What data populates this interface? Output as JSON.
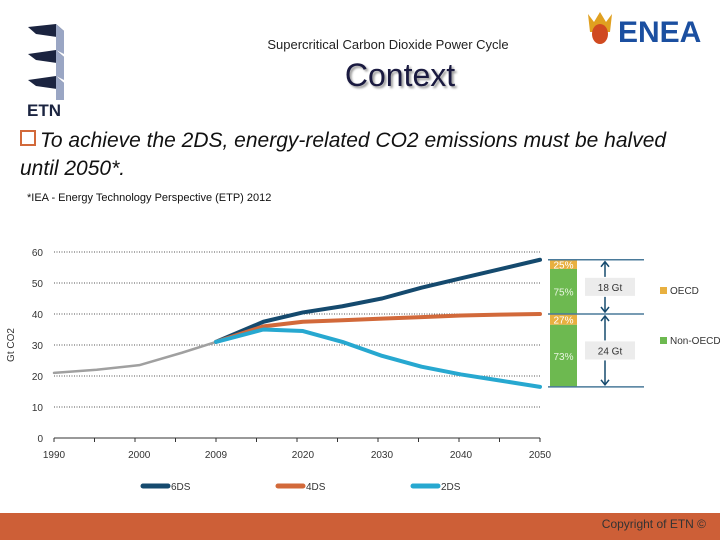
{
  "header": {
    "subtitle": "Supercritical Carbon Dioxide Power Cycle",
    "title": "Context",
    "etn_logo_text": "ETN",
    "enea_logo_text": "ENEA"
  },
  "bullet": {
    "icon": "hollow-square-bullet-icon",
    "text": "To achieve the 2DS, energy-related CO2 emissions must be halved until 2050*."
  },
  "source": "*IEA - Energy Technology  Perspective (ETP) 2012",
  "footer": {
    "copyright": "Copyright of ETN ©",
    "color": "#cd5f37"
  },
  "chart_data": {
    "type": "line",
    "ylabel": "Gt CO2",
    "ylim": [
      0,
      60
    ],
    "yticks": [
      0,
      10,
      20,
      30,
      40,
      50,
      60
    ],
    "xticks": [
      "1990",
      "2000",
      "2009",
      "2020",
      "2030",
      "2040",
      "2050"
    ],
    "grid": "dotted horizontal",
    "legend_position": "bottom",
    "history": {
      "color": "#a0a0a0",
      "x": [
        1990,
        1995,
        2000,
        2005,
        2009
      ],
      "y": [
        21,
        22,
        23.5,
        27.5,
        31
      ]
    },
    "series": [
      {
        "name": "6DS",
        "color": "#154a6e",
        "x": [
          2009,
          2015,
          2020,
          2025,
          2030,
          2035,
          2040,
          2045,
          2050
        ],
        "y": [
          31,
          37.5,
          40.5,
          42.5,
          45,
          48.5,
          51.5,
          54.5,
          57.5
        ]
      },
      {
        "name": "4DS",
        "color": "#d2693a",
        "x": [
          2009,
          2015,
          2020,
          2025,
          2030,
          2035,
          2040,
          2045,
          2050
        ],
        "y": [
          31,
          36,
          37.5,
          38,
          38.5,
          39,
          39.5,
          39.8,
          40
        ]
      },
      {
        "name": "2DS",
        "color": "#27a8d0",
        "x": [
          2009,
          2015,
          2020,
          2025,
          2030,
          2035,
          2040,
          2045,
          2050
        ],
        "y": [
          31,
          35,
          34.5,
          31,
          26.5,
          23,
          20.5,
          18.5,
          16.5
        ]
      }
    ],
    "reductions": [
      {
        "amount": "18 Gt",
        "oecd": "25%",
        "non_oecd": "75%",
        "from": 57.5,
        "to": 40
      },
      {
        "amount": "24 Gt",
        "oecd": "27%",
        "non_oecd": "73%",
        "from": 40,
        "to": 16.5
      }
    ],
    "bar_legend": [
      {
        "label": "OECD",
        "color": "#e8b040"
      },
      {
        "label": "Non-OECD",
        "color": "#6db950"
      }
    ]
  }
}
